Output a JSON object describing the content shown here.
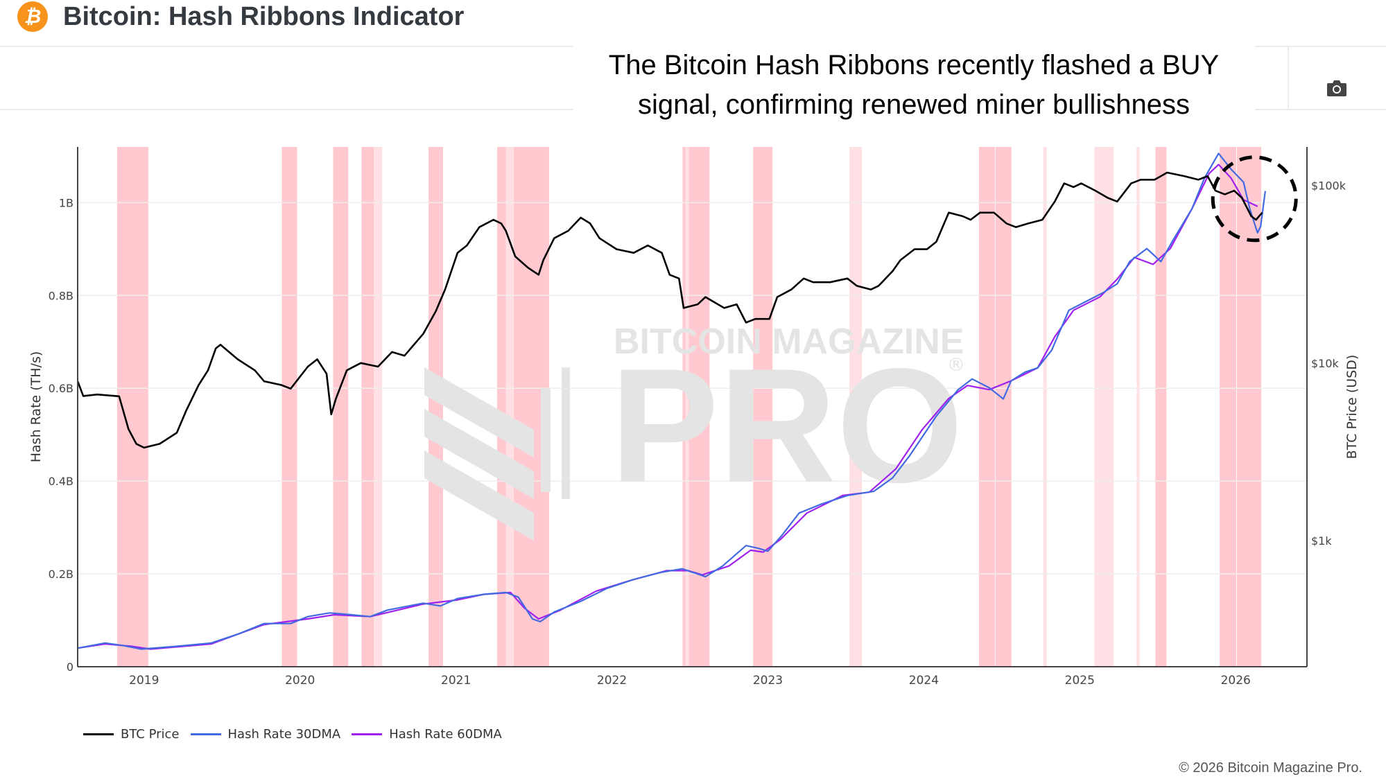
{
  "header": {
    "logo_glyph": "₿",
    "title": "Bitcoin: Hash Ribbons Indicator",
    "annotation_line1": "The Bitcoin Hash Ribbons recently flashed a BUY",
    "annotation_line2": "signal, confirming renewed miner bullishness",
    "camera_icon": "camera-icon"
  },
  "watermark": {
    "line1": "BITCOIN MAGAZINE",
    "line2": "PRO",
    "mark": "®"
  },
  "footer": {
    "copyright": "© 2026 Bitcoin Magazine Pro."
  },
  "colors": {
    "price": "#000000",
    "hash30": "#4169e1",
    "hash60": "#a020f0",
    "band": "#ffc9cf",
    "band_light": "#ffe0e4",
    "grid": "#eeeeee",
    "axis": "#444444",
    "brand": "#f7931a"
  },
  "chart_data": {
    "type": "line",
    "title": "Bitcoin: Hash Ribbons Indicator",
    "xlabel": "",
    "ylabel": "Hash Rate (TH/s)",
    "y2label": "BTC Price (USD)",
    "xlim": [
      2018.574,
      2026.457
    ],
    "ylim": [
      0,
      1.12
    ],
    "y2scale": "log",
    "y2lim_log10": [
      2.291,
      5.216
    ],
    "x_ticks": [
      {
        "value": 2019,
        "label": "2019"
      },
      {
        "value": 2020,
        "label": "2020"
      },
      {
        "value": 2021,
        "label": "2021"
      },
      {
        "value": 2022,
        "label": "2022"
      },
      {
        "value": 2023,
        "label": "2023"
      },
      {
        "value": 2024,
        "label": "2024"
      },
      {
        "value": 2025,
        "label": "2025"
      },
      {
        "value": 2026,
        "label": "2026"
      }
    ],
    "y_ticks": [
      {
        "value": 0,
        "label": "0"
      },
      {
        "value": 0.2,
        "label": "0.2B"
      },
      {
        "value": 0.4,
        "label": "0.4B"
      },
      {
        "value": 0.6,
        "label": "0.6B"
      },
      {
        "value": 0.8,
        "label": "0.8B"
      },
      {
        "value": 1.0,
        "label": "1B"
      }
    ],
    "y2_ticks": [
      {
        "value": 1000,
        "label": "$1k"
      },
      {
        "value": 10000,
        "label": "$10k"
      },
      {
        "value": 100000,
        "label": "$100k"
      }
    ],
    "grid": true,
    "legend": {
      "position": "bottom-left",
      "entries": [
        "BTC Price",
        "Hash Rate 30DMA",
        "Hash Rate 60DMA"
      ]
    },
    "capitulation_bands": [
      {
        "start": 2018.827,
        "end": 2019.027,
        "shade": "solid"
      },
      {
        "start": 2019.883,
        "end": 2019.981,
        "shade": "solid"
      },
      {
        "start": 2020.212,
        "end": 2020.309,
        "shade": "solid"
      },
      {
        "start": 2020.394,
        "end": 2020.474,
        "shade": "solid"
      },
      {
        "start": 2020.474,
        "end": 2020.527,
        "shade": "light"
      },
      {
        "start": 2020.824,
        "end": 2020.917,
        "shade": "solid"
      },
      {
        "start": 2021.264,
        "end": 2021.321,
        "shade": "solid"
      },
      {
        "start": 2021.321,
        "end": 2021.37,
        "shade": "light"
      },
      {
        "start": 2021.37,
        "end": 2021.597,
        "shade": "solid"
      },
      {
        "start": 2022.453,
        "end": 2022.471,
        "shade": "solid"
      },
      {
        "start": 2022.471,
        "end": 2022.493,
        "shade": "light"
      },
      {
        "start": 2022.493,
        "end": 2022.626,
        "shade": "solid"
      },
      {
        "start": 2022.906,
        "end": 2023.03,
        "shade": "solid"
      },
      {
        "start": 2023.523,
        "end": 2023.603,
        "shade": "light"
      },
      {
        "start": 2024.353,
        "end": 2024.456,
        "shade": "solid"
      },
      {
        "start": 2024.46,
        "end": 2024.562,
        "shade": "solid"
      },
      {
        "start": 2024.766,
        "end": 2024.788,
        "shade": "light"
      },
      {
        "start": 2025.094,
        "end": 2025.218,
        "shade": "light"
      },
      {
        "start": 2025.365,
        "end": 2025.383,
        "shade": "light"
      },
      {
        "start": 2025.485,
        "end": 2025.556,
        "shade": "solid"
      },
      {
        "start": 2025.897,
        "end": 2026.004,
        "shade": "solid"
      },
      {
        "start": 2026.008,
        "end": 2026.164,
        "shade": "solid"
      }
    ],
    "annotation_circle": {
      "x": 2026.12,
      "price": 84000
    },
    "series": [
      {
        "name": "BTC Price",
        "axis": "y2",
        "x": [
          2018.574,
          2018.61,
          2018.7,
          2018.84,
          2018.9,
          2018.95,
          2019.0,
          2019.1,
          2019.21,
          2019.27,
          2019.35,
          2019.41,
          2019.46,
          2019.49,
          2019.6,
          2019.71,
          2019.77,
          2019.88,
          2019.94,
          2020.05,
          2020.11,
          2020.17,
          2020.2,
          2020.23,
          2020.3,
          2020.39,
          2020.5,
          2020.59,
          2020.67,
          2020.79,
          2020.87,
          2020.93,
          2021.01,
          2021.07,
          2021.15,
          2021.24,
          2021.29,
          2021.32,
          2021.38,
          2021.46,
          2021.53,
          2021.56,
          2021.63,
          2021.72,
          2021.8,
          2021.86,
          2021.92,
          2022.03,
          2022.14,
          2022.23,
          2022.32,
          2022.37,
          2022.43,
          2022.46,
          2022.55,
          2022.6,
          2022.72,
          2022.8,
          2022.86,
          2022.92,
          2023.01,
          2023.06,
          2023.15,
          2023.23,
          2023.29,
          2023.4,
          2023.51,
          2023.57,
          2023.66,
          2023.71,
          2023.8,
          2023.85,
          2023.94,
          2024.02,
          2024.08,
          2024.16,
          2024.25,
          2024.3,
          2024.36,
          2024.45,
          2024.53,
          2024.59,
          2024.67,
          2024.76,
          2024.84,
          2024.9,
          2024.96,
          2025.01,
          2025.1,
          2025.18,
          2025.24,
          2025.33,
          2025.39,
          2025.48,
          2025.56,
          2025.67,
          2025.76,
          2025.82,
          2025.87,
          2025.93,
          2025.99,
          2026.04,
          2026.1,
          2026.13,
          2026.17
        ],
        "values": [
          7900,
          6520,
          6650,
          6500,
          4250,
          3510,
          3340,
          3510,
          4050,
          5390,
          7520,
          9100,
          12100,
          12680,
          10500,
          9100,
          7890,
          7520,
          7170,
          9540,
          10500,
          8700,
          5140,
          6300,
          9100,
          10000,
          9540,
          11530,
          11000,
          14600,
          19500,
          25900,
          41700,
          45900,
          58200,
          64000,
          61000,
          55500,
          39800,
          34500,
          31400,
          37900,
          50400,
          55500,
          65800,
          61000,
          50400,
          43700,
          41700,
          45900,
          41700,
          31400,
          29900,
          20400,
          21400,
          23500,
          20400,
          21400,
          16900,
          17700,
          17700,
          23500,
          25900,
          29900,
          28500,
          28500,
          29900,
          27200,
          25900,
          27200,
          32900,
          37900,
          43700,
          43700,
          48100,
          70200,
          67000,
          64000,
          70200,
          70200,
          61000,
          58200,
          61000,
          64000,
          81000,
          102500,
          97800,
          102500,
          93300,
          85000,
          81000,
          102500,
          107500,
          107500,
          118000,
          112700,
          107500,
          112700,
          93300,
          89000,
          93300,
          85000,
          67000,
          64000,
          70200
        ]
      },
      {
        "name": "Hash Rate 30DMA",
        "axis": "y",
        "x": [
          2018.574,
          2018.75,
          2018.86,
          2018.98,
          2019.21,
          2019.43,
          2019.6,
          2019.77,
          2019.94,
          2020.05,
          2020.19,
          2020.33,
          2020.45,
          2020.56,
          2020.79,
          2020.9,
          2021.01,
          2021.18,
          2021.32,
          2021.4,
          2021.49,
          2021.54,
          2021.63,
          2021.8,
          2021.97,
          2022.14,
          2022.31,
          2022.45,
          2022.54,
          2022.6,
          2022.71,
          2022.86,
          2022.94,
          2023.0,
          2023.09,
          2023.2,
          2023.34,
          2023.51,
          2023.68,
          2023.8,
          2023.91,
          2024.08,
          2024.22,
          2024.31,
          2024.42,
          2024.51,
          2024.56,
          2024.65,
          2024.73,
          2024.82,
          2024.93,
          2025.04,
          2025.15,
          2025.24,
          2025.32,
          2025.43,
          2025.52,
          2025.6,
          2025.72,
          2025.8,
          2025.89,
          2025.97,
          2026.05,
          2026.09,
          2026.14,
          2026.16,
          2026.19
        ],
        "values": [
          0.04,
          0.051,
          0.046,
          0.038,
          0.044,
          0.051,
          0.07,
          0.093,
          0.093,
          0.108,
          0.116,
          0.112,
          0.108,
          0.122,
          0.137,
          0.131,
          0.147,
          0.156,
          0.16,
          0.15,
          0.103,
          0.097,
          0.118,
          0.141,
          0.169,
          0.188,
          0.203,
          0.211,
          0.201,
          0.194,
          0.217,
          0.261,
          0.255,
          0.249,
          0.283,
          0.331,
          0.35,
          0.369,
          0.378,
          0.407,
          0.455,
          0.54,
          0.597,
          0.62,
          0.601,
          0.577,
          0.616,
          0.635,
          0.644,
          0.682,
          0.768,
          0.787,
          0.806,
          0.825,
          0.873,
          0.901,
          0.873,
          0.92,
          0.987,
          1.053,
          1.106,
          1.072,
          1.044,
          0.987,
          0.935,
          0.949,
          1.025
        ]
      },
      {
        "name": "Hash Rate 60DMA",
        "axis": "y",
        "x": [
          2018.574,
          2018.75,
          2018.92,
          2019.04,
          2019.43,
          2019.77,
          2020.05,
          2020.22,
          2020.45,
          2020.79,
          2021.01,
          2021.18,
          2021.35,
          2021.44,
          2021.53,
          2021.67,
          2021.9,
          2022.12,
          2022.35,
          2022.49,
          2022.58,
          2022.75,
          2022.89,
          2022.97,
          2023.08,
          2023.25,
          2023.48,
          2023.65,
          2023.82,
          2023.99,
          2024.16,
          2024.28,
          2024.42,
          2024.56,
          2024.73,
          2024.84,
          2024.96,
          2025.13,
          2025.24,
          2025.35,
          2025.47,
          2025.58,
          2025.72,
          2025.83,
          2025.89,
          2025.97,
          2026.05,
          2026.14
        ],
        "values": [
          0.04,
          0.049,
          0.044,
          0.038,
          0.049,
          0.091,
          0.103,
          0.112,
          0.108,
          0.135,
          0.144,
          0.156,
          0.16,
          0.126,
          0.103,
          0.122,
          0.163,
          0.186,
          0.207,
          0.207,
          0.198,
          0.217,
          0.251,
          0.247,
          0.274,
          0.331,
          0.369,
          0.376,
          0.426,
          0.511,
          0.578,
          0.606,
          0.597,
          0.616,
          0.644,
          0.711,
          0.768,
          0.797,
          0.835,
          0.882,
          0.867,
          0.901,
          0.987,
          1.063,
          1.082,
          1.053,
          1.006,
          0.992
        ]
      }
    ]
  }
}
